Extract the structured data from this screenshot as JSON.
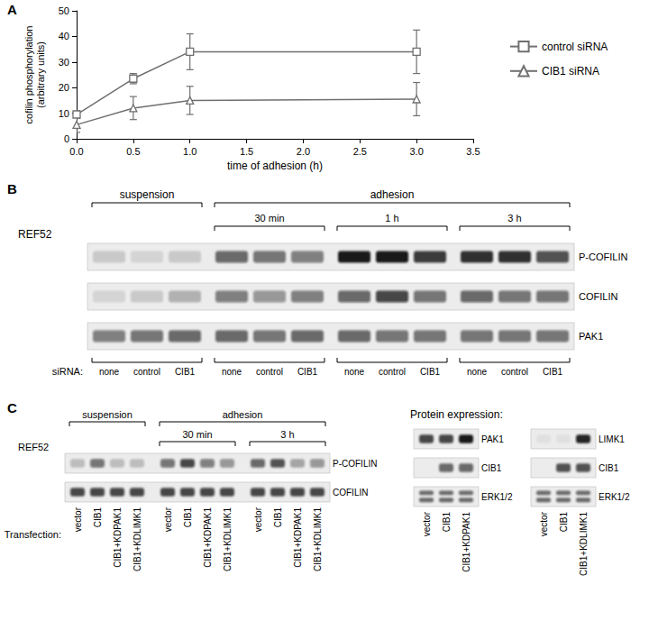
{
  "chart_data": {
    "panel": "A",
    "type": "line",
    "x_label": "time of adhesion (h)",
    "y_label": [
      "cofilin phosphorylation",
      "(arbitrary units)"
    ],
    "x": [
      0,
      0.5,
      1,
      3
    ],
    "xlim": [
      0,
      3.5
    ],
    "xticks": [
      {
        "value": 0,
        "label": "0.0"
      },
      {
        "value": 0.5,
        "label": "0.5"
      },
      {
        "value": 1,
        "label": "1.0"
      },
      {
        "value": 1.5,
        "label": "1.5"
      },
      {
        "value": 2,
        "label": "2.0"
      },
      {
        "value": 2.5,
        "label": "2.5"
      },
      {
        "value": 3,
        "label": "3.0"
      },
      {
        "value": 3.5,
        "label": "3.5"
      }
    ],
    "ylim": [
      0,
      50
    ],
    "yticks": [
      0,
      10,
      20,
      30,
      40,
      50
    ],
    "legend": "right",
    "series": [
      {
        "name": "control siRNA",
        "color": "#707070",
        "marker": "square",
        "values": [
          9.5,
          23.5,
          34,
          34
        ],
        "errors": [
          1.5,
          2,
          7,
          8.5
        ]
      },
      {
        "name": "CIB1 siRNA",
        "color": "#707070",
        "marker": "triangle",
        "values": [
          5.5,
          12,
          15,
          15.5
        ],
        "errors": [
          3,
          4.5,
          5.5,
          6.5
        ]
      }
    ]
  },
  "panel_b": {
    "panel": "B",
    "cell_line": "REF52",
    "groups": [
      {
        "label": "suspension",
        "lanes": 3
      },
      {
        "label": "adhesion",
        "subgroups": [
          {
            "label": "30 min",
            "lanes": 3
          },
          {
            "label": "1 h",
            "lanes": 3
          },
          {
            "label": "3 h",
            "lanes": 3
          }
        ]
      }
    ],
    "lane_label_title": "siRNA:",
    "lane_labels": [
      "none",
      "control",
      "CIB1",
      "none",
      "control",
      "CIB1",
      "none",
      "control",
      "CIB1",
      "none",
      "control",
      "CIB1"
    ],
    "rows": [
      {
        "label": "P-COFILIN",
        "bands": [
          0.15,
          0.1,
          0.15,
          0.6,
          0.55,
          0.5,
          0.95,
          0.95,
          0.8,
          0.85,
          0.85,
          0.7
        ]
      },
      {
        "label": "COFILIN",
        "bands": [
          0.1,
          0.15,
          0.25,
          0.5,
          0.4,
          0.5,
          0.6,
          0.75,
          0.55,
          0.6,
          0.55,
          0.55
        ]
      },
      {
        "label": "PAK1",
        "bands": [
          0.5,
          0.55,
          0.6,
          0.6,
          0.55,
          0.6,
          0.6,
          0.55,
          0.55,
          0.55,
          0.55,
          0.55
        ]
      }
    ]
  },
  "panel_c": {
    "panel": "C",
    "cell_line": "REF52",
    "groups": [
      {
        "label": "suspension",
        "lanes": 4
      },
      {
        "label": "adhesion",
        "subgroups": [
          {
            "label": "30 min",
            "lanes": 4
          },
          {
            "label": "3 h",
            "lanes": 4
          }
        ]
      }
    ],
    "lane_label_title": "Transfection:",
    "lane_labels": [
      "vector",
      "CIB1",
      "CIB1+KDPAK1",
      "CIB1+KDLIMK1",
      "vector",
      "CIB1",
      "CIB1+KDPAK1",
      "CIB1+KDLIMK1",
      "vector",
      "CIB1",
      "CIB1+KDPAK1",
      "CIB1+KDLIMK1"
    ],
    "rows": [
      {
        "label": "P-COFILIN",
        "bands": [
          0.2,
          0.55,
          0.2,
          0.2,
          0.55,
          0.75,
          0.5,
          0.4,
          0.6,
          0.7,
          0.3,
          0.4
        ]
      },
      {
        "label": "COFILIN",
        "bands": [
          0.75,
          0.75,
          0.75,
          0.75,
          0.75,
          0.75,
          0.75,
          0.75,
          0.75,
          0.75,
          0.75,
          0.75
        ]
      }
    ],
    "expression": {
      "title": "Protein expression:",
      "blots": [
        {
          "lane_labels": [
            "vector",
            "CIB1",
            "CIB1+KDPAK1"
          ],
          "rows": [
            {
              "label": "PAK1",
              "bands": [
                0.75,
                0.75,
                0.95
              ]
            },
            {
              "label": "CIB1",
              "bands": [
                0,
                0.6,
                0.6
              ]
            },
            {
              "label": "ERK1/2",
              "bands": [
                0.6,
                0.6,
                0.6
              ],
              "doublet": true
            }
          ]
        },
        {
          "lane_labels": [
            "vector",
            "CIB1",
            "CIB1+KDLIMK1"
          ],
          "rows": [
            {
              "label": "LIMK1",
              "bands": [
                0.05,
                0.05,
                0.9
              ]
            },
            {
              "label": "CIB1",
              "bands": [
                0,
                0.7,
                0.7
              ]
            },
            {
              "label": "ERK1/2",
              "bands": [
                0.6,
                0.6,
                0.6
              ],
              "doublet": true
            }
          ]
        }
      ]
    }
  }
}
